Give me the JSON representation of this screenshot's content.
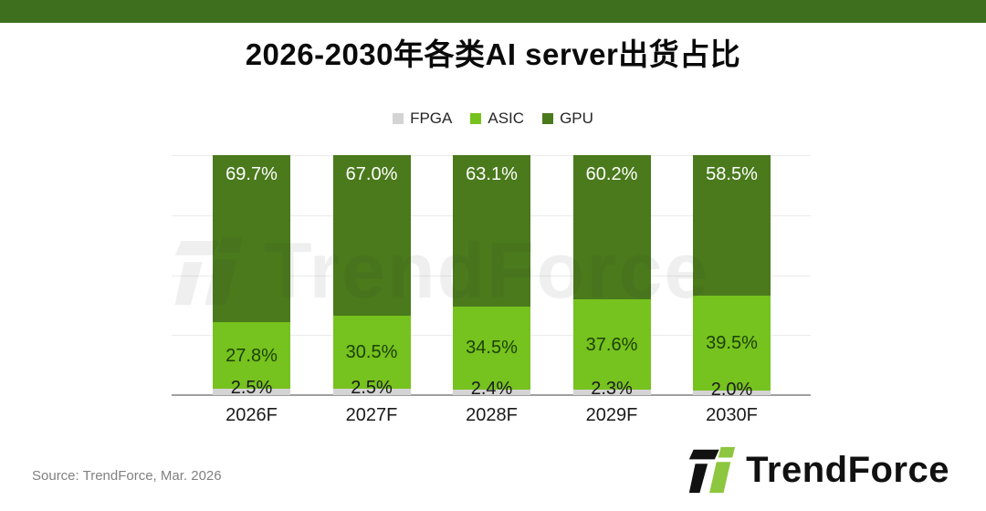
{
  "header": {
    "title": "2026-2030年各类AI server出货占比"
  },
  "legend": [
    {
      "label": "FPGA",
      "color": "#d4d4d4"
    },
    {
      "label": "ASIC",
      "color": "#76c21e"
    },
    {
      "label": "GPU",
      "color": "#4a7a1c"
    }
  ],
  "chart_data": {
    "type": "bar",
    "stacked": true,
    "title": "2026-2030年各类AI server出货占比",
    "categories": [
      "2026F",
      "2027F",
      "2028F",
      "2029F",
      "2030F"
    ],
    "series": [
      {
        "name": "FPGA",
        "color": "#d4d4d4",
        "label_color": "#1a1a1a",
        "values": [
          2.5,
          2.5,
          2.4,
          2.3,
          2.0
        ]
      },
      {
        "name": "ASIC",
        "color": "#76c21e",
        "label_color": "#1c4104",
        "values": [
          27.8,
          30.5,
          34.5,
          37.6,
          39.5
        ]
      },
      {
        "name": "GPU",
        "color": "#4a7a1c",
        "label_color": "#ffffff",
        "values": [
          69.7,
          67.0,
          63.1,
          60.2,
          58.5
        ]
      }
    ],
    "value_suffix": "%",
    "ylim": [
      0,
      100
    ],
    "gridline_values": [
      0,
      25,
      50,
      75,
      100
    ],
    "grid": true,
    "legend_position": "top",
    "xlabel": "",
    "ylabel": ""
  },
  "watermark": {
    "text": "TrendForce"
  },
  "footer": {
    "source": "Source: TrendForce, Mar. 2026",
    "logo_text": "TrendForce"
  },
  "colors": {
    "top_strip": "#3d6f1e",
    "axis": "#a0a0a0",
    "gridline": "#ebebeb",
    "title_text": "#0a0a0a",
    "source_text": "#818181",
    "logo_green": "#8dc63f",
    "logo_black": "#111111"
  }
}
